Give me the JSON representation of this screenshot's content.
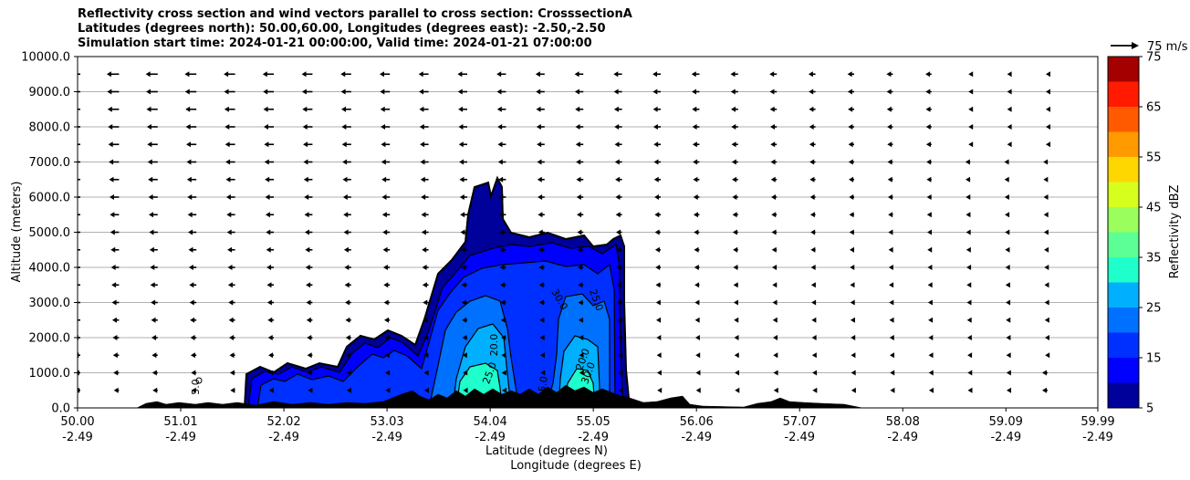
{
  "chart_data": {
    "type": "contourf",
    "title_lines": [
      "Reflectivity cross section and wind vectors parallel to cross section: CrosssectionA",
      "Latitudes (degrees north): 50.00,60.00, Longitudes (degrees east): -2.50,-2.50",
      "Simulation start time: 2024-01-21 00:00:00, Valid time: 2024-01-21 07:00:00"
    ],
    "ylabel": "Altitude (meters)",
    "xlabel_lines": [
      "Latitude (degrees N)",
      "Longitude (degrees E)"
    ],
    "xlim": [
      50.0,
      59.99
    ],
    "ylim": [
      0,
      10000
    ],
    "x_ticks": [
      {
        "lat": "50.00",
        "lon": "-2.49"
      },
      {
        "lat": "51.01",
        "lon": "-2.49"
      },
      {
        "lat": "52.02",
        "lon": "-2.49"
      },
      {
        "lat": "53.03",
        "lon": "-2.49"
      },
      {
        "lat": "54.04",
        "lon": "-2.49"
      },
      {
        "lat": "55.05",
        "lon": "-2.49"
      },
      {
        "lat": "56.06",
        "lon": "-2.49"
      },
      {
        "lat": "57.07",
        "lon": "-2.49"
      },
      {
        "lat": "58.08",
        "lon": "-2.49"
      },
      {
        "lat": "59.09",
        "lon": "-2.49"
      },
      {
        "lat": "59.99",
        "lon": "-2.49"
      }
    ],
    "y_ticks": [
      "0.0",
      "1000.0",
      "2000.0",
      "3000.0",
      "4000.0",
      "5000.0",
      "6000.0",
      "7000.0",
      "8000.0",
      "9000.0",
      "10000.0"
    ],
    "grid": "horizontal",
    "colorbar": {
      "label": "Reflectivity dBZ",
      "min": 5,
      "max": 75,
      "step": 5,
      "tick_labels": [
        "5",
        "15",
        "25",
        "35",
        "45",
        "55",
        "65",
        "75"
      ],
      "colors": [
        "#00009a",
        "#0000ff",
        "#0030ff",
        "#0070ff",
        "#00b0ff",
        "#1effcc",
        "#5cff96",
        "#9aff5c",
        "#d6ff1e",
        "#ffd700",
        "#ff9a00",
        "#ff5a00",
        "#ff1a00",
        "#a50000"
      ]
    },
    "wind_key": {
      "label": "75 m/s"
    },
    "contour_labels": [
      "5.0",
      "20.0",
      "25.0",
      "30.0",
      "15.0",
      "20.0",
      "25.0",
      "30.0"
    ],
    "colors": {
      "terrain": "#000000",
      "grid": "#b0b0b0",
      "arrow": "#000000"
    }
  }
}
